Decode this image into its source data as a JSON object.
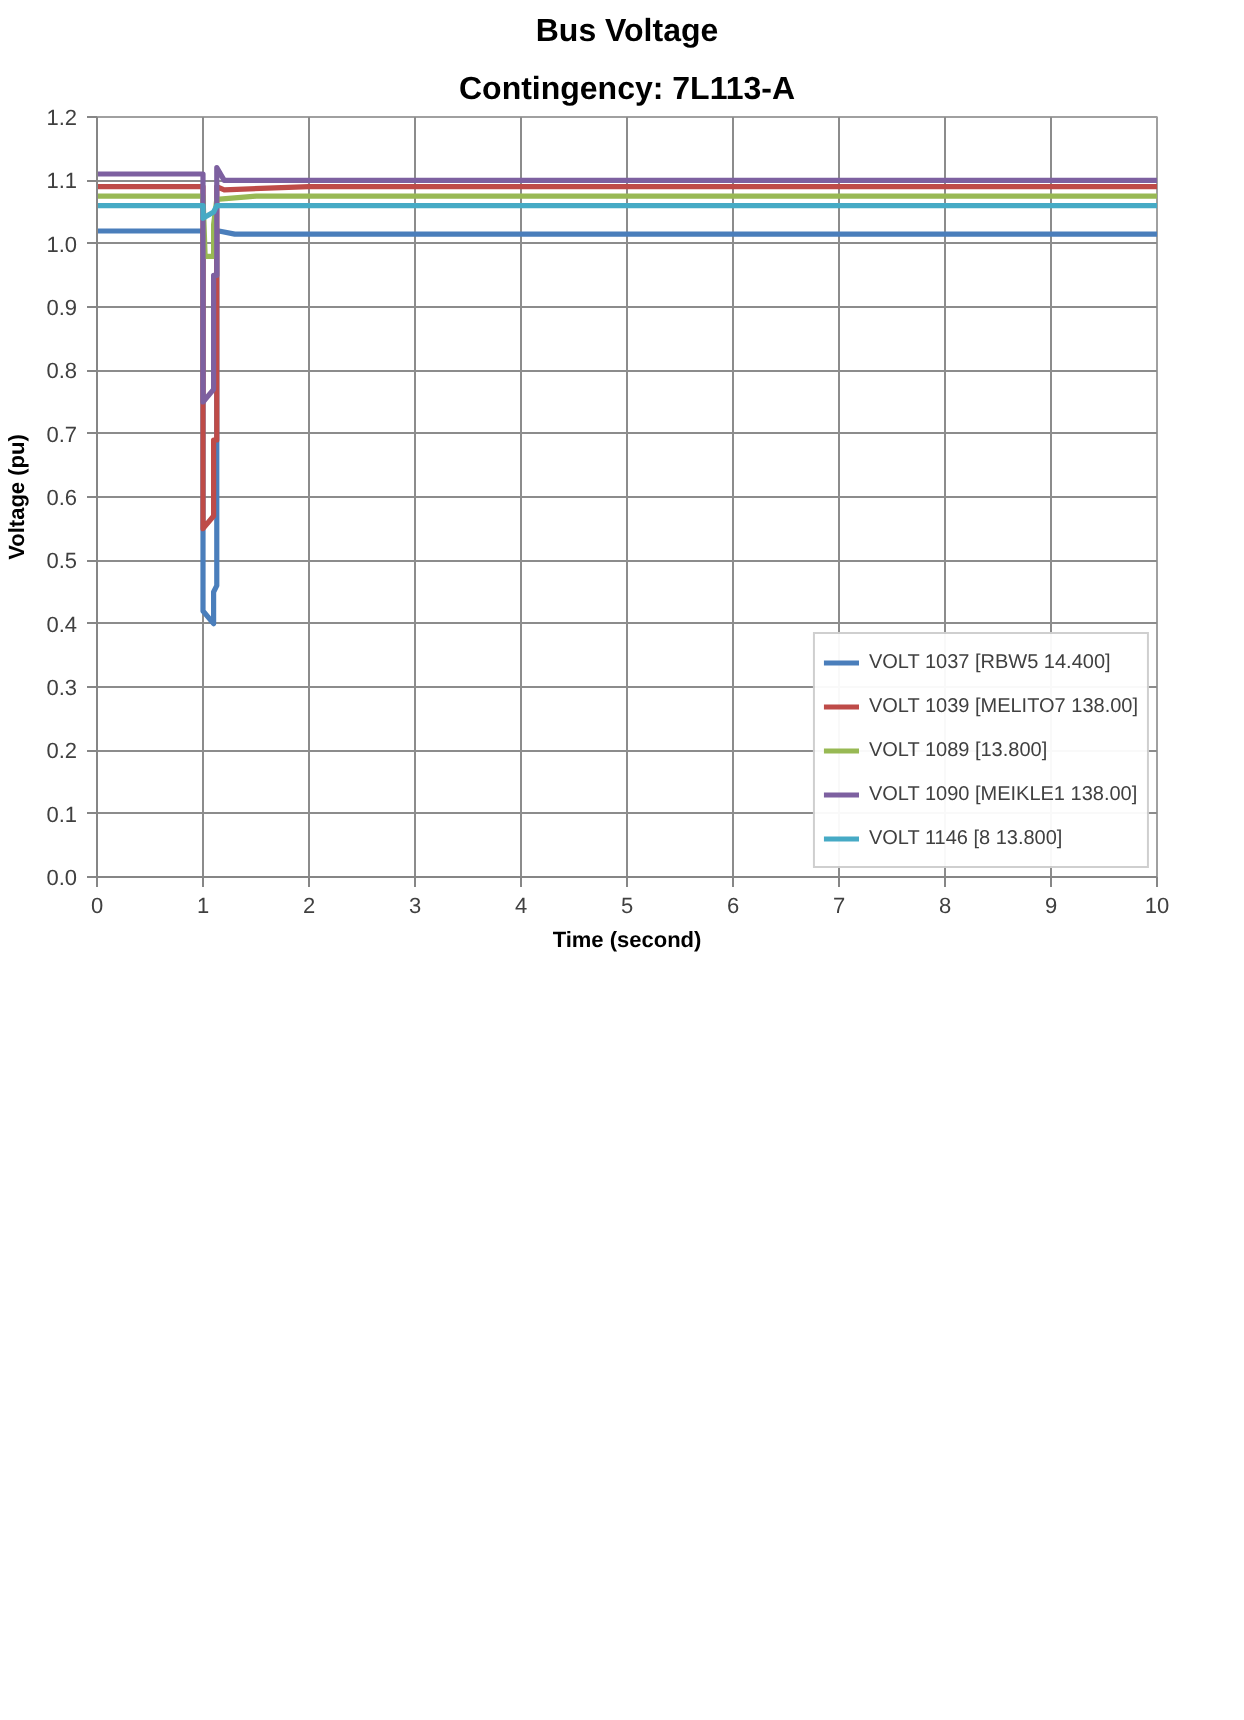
{
  "chart_data": {
    "type": "line",
    "title": "Bus Voltage",
    "subtitle": "Contingency: 7L113-A",
    "xlabel": "Time (second)",
    "ylabel": "Voltage (pu)",
    "xlim": [
      0,
      10
    ],
    "xticks": [
      0,
      1,
      2,
      3,
      4,
      5,
      6,
      7,
      8,
      9,
      10
    ],
    "ylim": [
      0,
      1.2
    ],
    "yticks": [
      {
        "value": 0,
        "label": "0.0"
      },
      0.1,
      0.2,
      0.3,
      0.4,
      0.5,
      0.6,
      0.7,
      0.8,
      0.9,
      {
        "value": 1,
        "label": "1.0"
      },
      1.1,
      1.2
    ],
    "grid": true,
    "legend": "bottom right",
    "series": [
      {
        "name": "VOLT 1037 [RBW5 14.400]",
        "color": "#4a7ebb",
        "x": [
          0,
          1,
          1,
          1.1,
          1.1,
          1.13,
          1.13,
          1.15,
          1.3,
          2,
          10
        ],
        "values": [
          1.02,
          1.02,
          0.42,
          0.4,
          0.45,
          0.46,
          1.02,
          1.02,
          1.015,
          1.015,
          1.015
        ]
      },
      {
        "name": "VOLT 1039 [MELITO7 138.00]",
        "color": "#be4b48",
        "x": [
          0,
          1,
          1,
          1.1,
          1.1,
          1.13,
          1.13,
          1.2,
          2,
          10
        ],
        "values": [
          1.09,
          1.09,
          0.55,
          0.57,
          0.69,
          0.69,
          1.09,
          1.085,
          1.09,
          1.09
        ]
      },
      {
        "name": "VOLT 1089 [13.800]",
        "color": "#98b954",
        "x": [
          0,
          1,
          1.02,
          1.1,
          1.1,
          1.13,
          1.5,
          10
        ],
        "values": [
          1.075,
          1.075,
          0.98,
          0.98,
          1.03,
          1.07,
          1.075,
          1.075
        ]
      },
      {
        "name": "VOLT 1090 [MEIKLE1 138.00]",
        "color": "#7d60a0",
        "x": [
          0,
          1,
          1,
          1.1,
          1.1,
          1.13,
          1.13,
          1.2,
          2,
          10
        ],
        "values": [
          1.11,
          1.11,
          0.75,
          0.77,
          0.95,
          0.95,
          1.12,
          1.1,
          1.1,
          1.1
        ]
      },
      {
        "name": "VOLT 1146 [8 13.800]",
        "color": "#46aac5",
        "x": [
          0,
          1,
          1,
          1.1,
          1.13,
          10
        ],
        "values": [
          1.06,
          1.06,
          1.04,
          1.05,
          1.06,
          1.06
        ]
      }
    ]
  }
}
